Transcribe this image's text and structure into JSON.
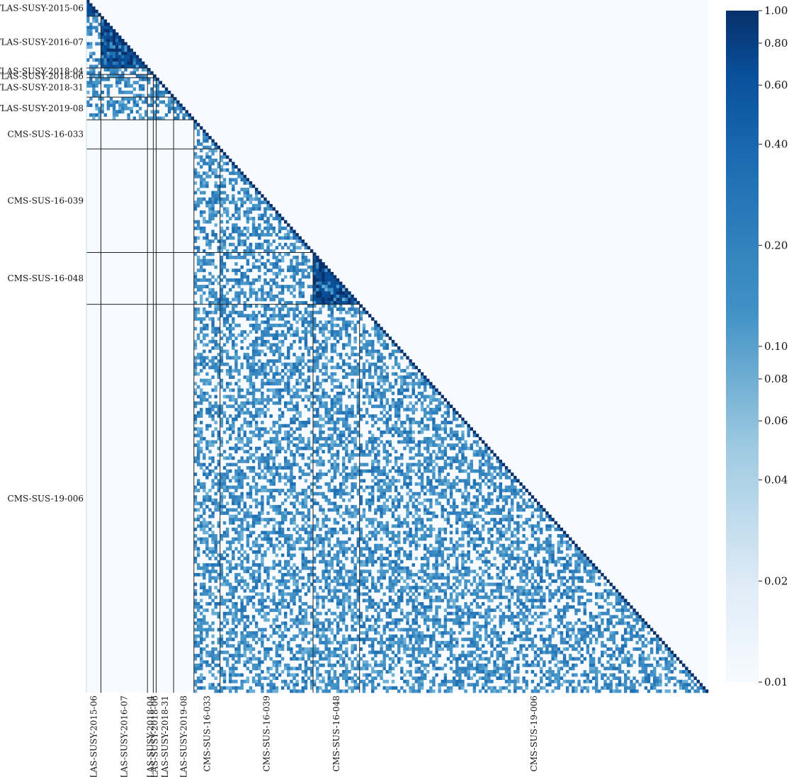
{
  "chart_data": {
    "type": "heatmap",
    "title": "",
    "xlabel": "",
    "ylabel": "",
    "matrix_shape": "lower-triangular",
    "n_bins": 214,
    "analyses": [
      {
        "name": "ATLAS-SUSY-2015-06",
        "start": 0,
        "end": 5
      },
      {
        "name": "ATLAS-SUSY-2016-07",
        "start": 5,
        "end": 21
      },
      {
        "name": "ATLAS-SUSY-2018-04",
        "start": 21,
        "end": 23
      },
      {
        "name": "ATLAS-SUSY-2018-06",
        "start": 23,
        "end": 24
      },
      {
        "name": "ATLAS-SUSY-2018-31",
        "start": 24,
        "end": 30
      },
      {
        "name": "ATLAS-SUSY-2019-08",
        "start": 30,
        "end": 37
      },
      {
        "name": "CMS-SUS-16-033",
        "start": 37,
        "end": 46
      },
      {
        "name": "CMS-SUS-16-039",
        "start": 46,
        "end": 78
      },
      {
        "name": "CMS-SUS-16-048",
        "start": 78,
        "end": 94
      },
      {
        "name": "CMS-SUS-19-006",
        "start": 94,
        "end": 214
      }
    ],
    "colorbar": {
      "scale": "log",
      "range": [
        0.01,
        1.0
      ],
      "ticks": [
        "1.00",
        "0.80",
        "0.60",
        "0.40",
        "0.20",
        "0.10",
        "0.08",
        "0.06",
        "0.04",
        "0.02",
        "0.01"
      ],
      "tick_values": [
        1.0,
        0.8,
        0.6,
        0.4,
        0.2,
        0.1,
        0.08,
        0.06,
        0.04,
        0.02,
        0.01
      ],
      "colormap": "Blues",
      "color_low": "#f7fbff",
      "color_high": "#08306b"
    },
    "background_color": "#f7fbff",
    "value_distribution": {
      "typical_offdiagonal": 0.03,
      "diagonal": 1.0,
      "high_blocks": [
        "ATLAS-SUSY-2015-06",
        "ATLAS-SUSY-2016-07",
        "CMS-SUS-16-048"
      ]
    }
  }
}
